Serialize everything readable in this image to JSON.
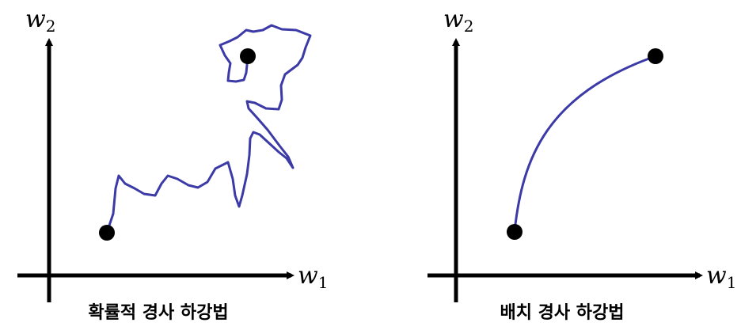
{
  "colors": {
    "path": "#3b3aa6",
    "axis": "#000000",
    "point": "#000000",
    "background": "#ffffff"
  },
  "panels": [
    {
      "caption": "확률적 경사 하강법",
      "x_axis": {
        "letter": "w",
        "sub": "1"
      },
      "y_axis": {
        "letter": "w",
        "sub": "2"
      }
    },
    {
      "caption": "배치 경사 하강법",
      "x_axis": {
        "letter": "w",
        "sub": "1"
      },
      "y_axis": {
        "letter": "w",
        "sub": "2"
      }
    }
  ]
}
